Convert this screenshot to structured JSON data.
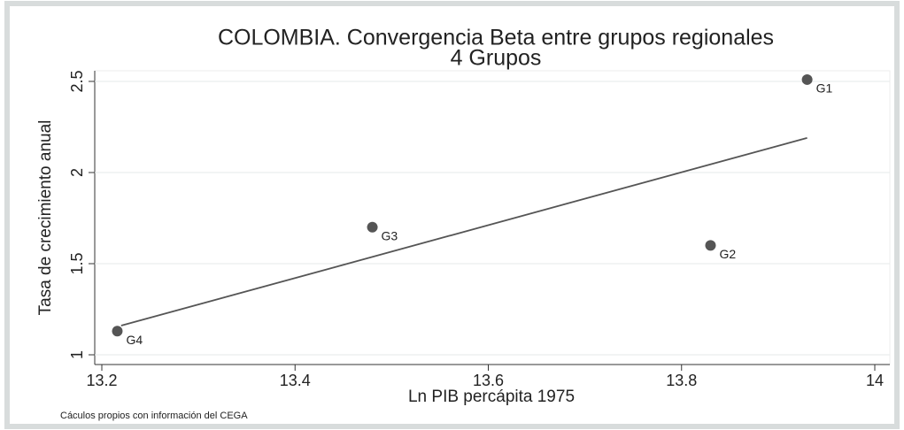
{
  "chart_data": {
    "type": "scatter",
    "title": "COLOMBIA. Convergencia Beta entre grupos regionales",
    "subtitle": "4 Grupos",
    "x_label": "Ln PIB percápita 1975",
    "y_label": "Tasa de crecimiento anual",
    "note": "Cáculos propios con información del CEGA",
    "labels": [
      "G1",
      "G2",
      "G3",
      "G4"
    ],
    "x": [
      13.93,
      13.83,
      13.48,
      13.216
    ],
    "values": [
      2.51,
      1.6,
      1.7,
      1.13
    ],
    "color": "#555555",
    "fit": {
      "x": [
        13.22,
        13.93
      ],
      "values": [
        1.16,
        2.19
      ],
      "color": "#555555"
    },
    "xlim": [
      13.2,
      14
    ],
    "xticks": [
      13.2,
      13.4,
      13.6,
      13.8,
      14
    ],
    "ylim": [
      1,
      2.5
    ],
    "yticks": [
      1,
      1.5,
      2,
      2.5
    ],
    "grid": true
  }
}
